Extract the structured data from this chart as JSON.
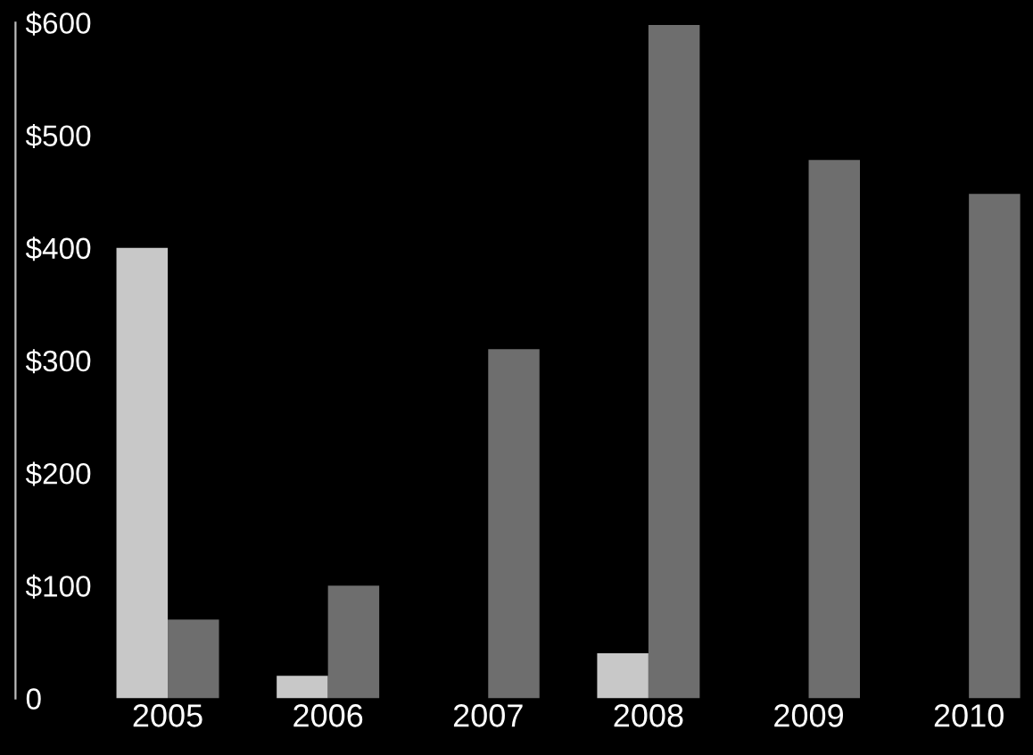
{
  "chart_data": {
    "type": "bar",
    "categories": [
      "2005",
      "2006",
      "2007",
      "2008",
      "2009",
      "2010"
    ],
    "series": [
      {
        "color": "#c8c8c8",
        "values": [
          400,
          20,
          null,
          40,
          null,
          null
        ]
      },
      {
        "color": "#6e6e6e",
        "values": [
          70,
          100,
          310,
          598,
          478,
          448
        ]
      }
    ],
    "ylim": [
      0,
      600
    ],
    "yticks": [
      {
        "value": 0,
        "label": "0"
      },
      {
        "value": 100,
        "label": "$100"
      },
      {
        "value": 200,
        "label": "$200"
      },
      {
        "value": 300,
        "label": "$300"
      },
      {
        "value": 400,
        "label": "$400"
      },
      {
        "value": 500,
        "label": "$500"
      },
      {
        "value": 600,
        "label": "$600"
      }
    ],
    "grid": false,
    "legend": false
  }
}
